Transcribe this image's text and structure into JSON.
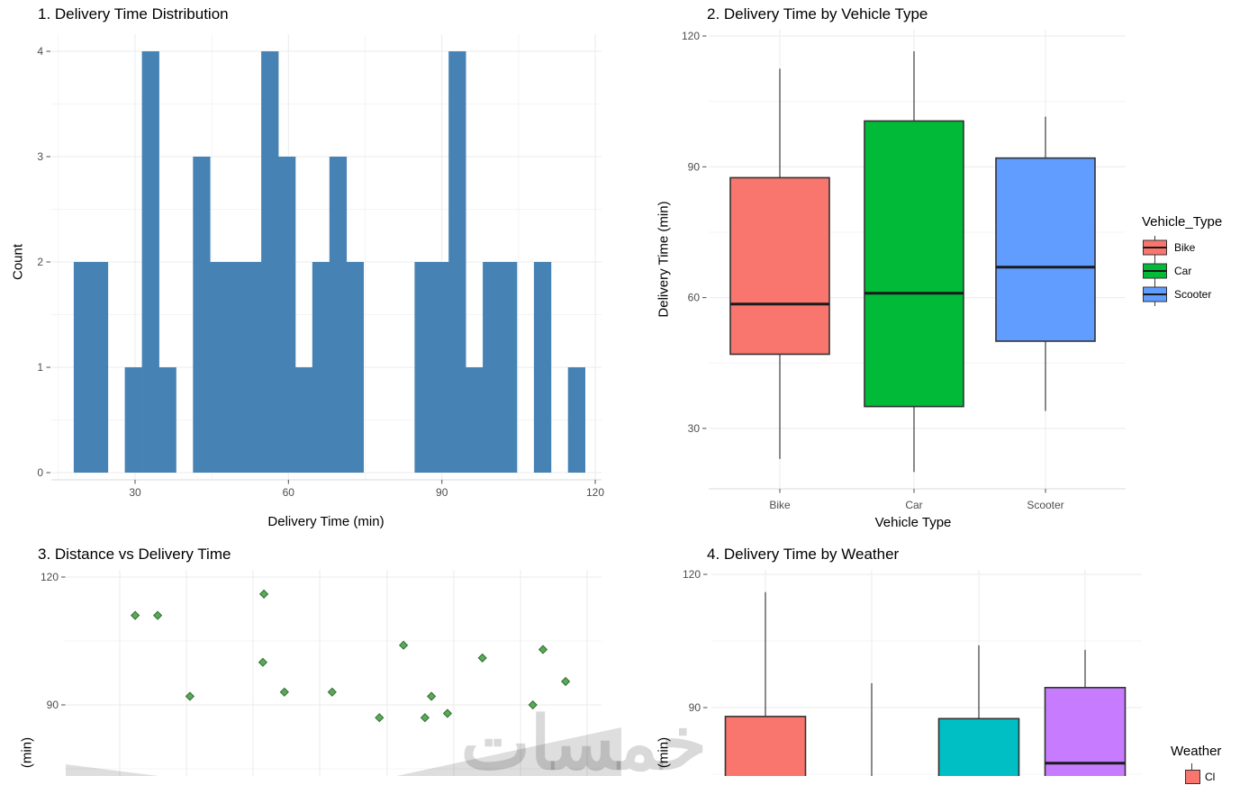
{
  "watermark": {
    "text": "خمسات"
  },
  "style": {
    "background": "#FFFFFF",
    "grid_major": "#EBEBEB",
    "grid_minor": "#F4F4F4",
    "tick_label_color": "#4D4D4D",
    "text_color": "#000000",
    "box_border": "#333333",
    "whisker_color": "#3C3C3C",
    "median_color": "#1A1A1A",
    "axis_line": "#D9D9D9"
  },
  "chart_data": [
    {
      "type": "bar",
      "title": "1. Delivery Time Distribution",
      "xlabel": "Delivery Time (min)",
      "ylabel": "Count",
      "bar_color": "#4682B4",
      "x_ticks": [
        30,
        60,
        90,
        120
      ],
      "y_ticks": [
        0,
        1,
        2,
        3,
        4
      ],
      "xlim": [
        13.5,
        121.5
      ],
      "ylim": [
        0,
        4.2
      ],
      "grid": true,
      "histogram": {
        "bin_start": 18,
        "bin_width": 3.3333,
        "counts": [
          2,
          2,
          0,
          1,
          4,
          1,
          0,
          3,
          2,
          2,
          2,
          4,
          3,
          1,
          2,
          3,
          2,
          0,
          0,
          0,
          2,
          2,
          4,
          1,
          2,
          2,
          0,
          2,
          0,
          1
        ]
      }
    },
    {
      "type": "boxplot",
      "title": "2. Delivery Time by Vehicle Type",
      "xlabel": "Vehicle Type",
      "ylabel": "Delivery Time (min)",
      "y_ticks": [
        30,
        60,
        90,
        120
      ],
      "ylim": [
        17,
        122
      ],
      "grid": true,
      "categories": [
        "Bike",
        "Car",
        "Scooter"
      ],
      "series": [
        {
          "name": "Bike",
          "color": "#F8766D",
          "whisker_low": 23,
          "q1": 47,
          "median": 58.5,
          "q3": 87.5,
          "whisker_high": 112.5
        },
        {
          "name": "Car",
          "color": "#00BA38",
          "whisker_low": 20,
          "q1": 35,
          "median": 61,
          "q3": 100.5,
          "whisker_high": 116.5
        },
        {
          "name": "Scooter",
          "color": "#619CFF",
          "whisker_low": 34,
          "q1": 50,
          "median": 67,
          "q3": 92,
          "whisker_high": 101.5
        }
      ],
      "legend": {
        "title": "Vehicle_Type",
        "position": "right",
        "items": [
          {
            "label": "Bike",
            "color": "#F8766D"
          },
          {
            "label": "Car",
            "color": "#00BA38"
          },
          {
            "label": "Scooter",
            "color": "#619CFF"
          }
        ]
      }
    },
    {
      "type": "scatter",
      "title": "3. Distance vs Delivery Time",
      "ylabel_visible": "(min)",
      "y_ticks": [
        90,
        120
      ],
      "grid": true,
      "point_color": "#5BA85B",
      "point_stroke": "#2F6F2F",
      "note": "panel cropped at screenshot bottom; x axis labels not visible",
      "points": [
        {
          "x_frac": 0.131,
          "y": 111
        },
        {
          "x_frac": 0.173,
          "y": 111
        },
        {
          "x_frac": 0.233,
          "y": 92
        },
        {
          "x_frac": 0.369,
          "y": 100
        },
        {
          "x_frac": 0.371,
          "y": 116
        },
        {
          "x_frac": 0.409,
          "y": 93
        },
        {
          "x_frac": 0.498,
          "y": 93
        },
        {
          "x_frac": 0.586,
          "y": 87
        },
        {
          "x_frac": 0.631,
          "y": 104
        },
        {
          "x_frac": 0.671,
          "y": 87
        },
        {
          "x_frac": 0.683,
          "y": 92
        },
        {
          "x_frac": 0.713,
          "y": 88
        },
        {
          "x_frac": 0.778,
          "y": 101
        },
        {
          "x_frac": 0.872,
          "y": 90
        },
        {
          "x_frac": 0.891,
          "y": 103
        },
        {
          "x_frac": 0.933,
          "y": 95.5
        }
      ]
    },
    {
      "type": "boxplot",
      "title": "4. Delivery Time by Weather",
      "ylabel_visible": "(min)",
      "y_ticks": [
        90,
        120
      ],
      "grid": true,
      "note": "panel cropped at screenshot bottom; only box tops visible",
      "series": [
        {
          "label": "",
          "color": "#F8766D",
          "q3": 88,
          "whisker_high": 116,
          "visible": "partial"
        },
        {
          "label": "",
          "color": "",
          "whisker_high": 95.5,
          "visible": "upper-whisker-only"
        },
        {
          "label": "",
          "color": "#00BFC4",
          "q3": 87.5,
          "whisker_high": 104,
          "visible": "partial"
        },
        {
          "label": "",
          "color": "#C77CFF",
          "median": 77.5,
          "q3": 94.5,
          "whisker_high": 103,
          "visible": "partial"
        }
      ],
      "legend": {
        "title": "Weather",
        "first_item_color": "#F8766D",
        "first_item_label_visible": "Cl"
      }
    }
  ]
}
